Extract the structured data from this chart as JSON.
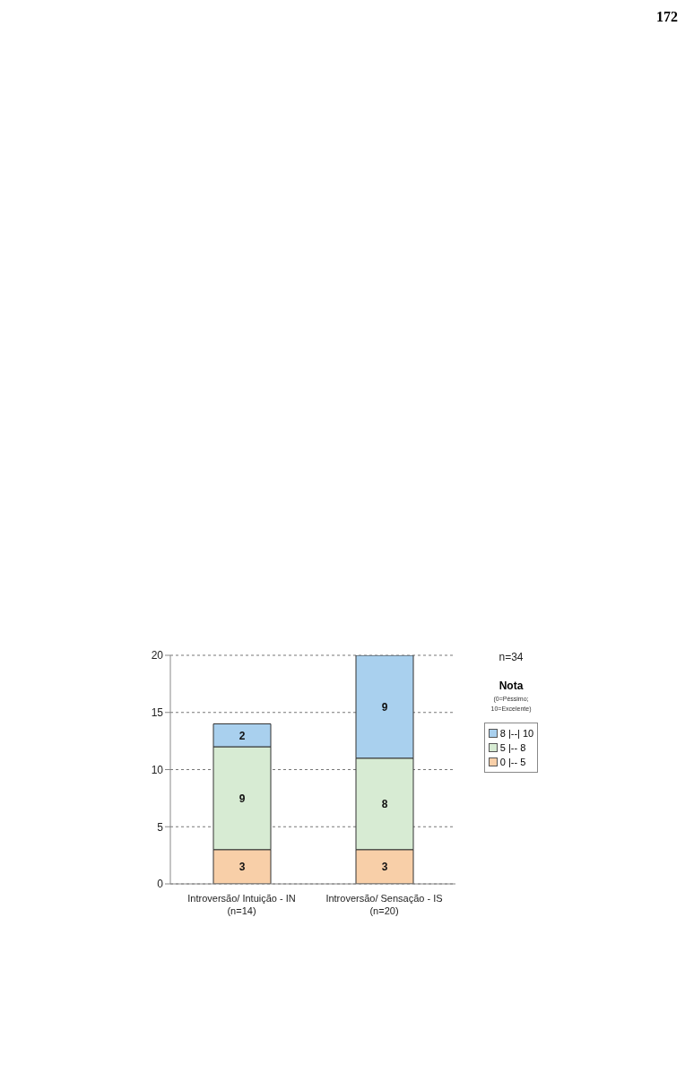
{
  "chart_data": {
    "type": "bar",
    "stacked": true,
    "categories": [
      "Introversão/ Intuição - IN\n(n=14)",
      "Introversão/ Sensação - IS\n(n=20)"
    ],
    "series": [
      {
        "name": "0 |-- 5",
        "color": "#f8cfa8",
        "values": [
          3,
          3
        ]
      },
      {
        "name": "5 |-- 8",
        "color": "#d7ebd3",
        "values": [
          9,
          8
        ]
      },
      {
        "name": "8 |--| 10",
        "color": "#a9d0ee",
        "values": [
          2,
          9
        ]
      }
    ],
    "ylim": [
      0,
      20
    ],
    "yticks": [
      0,
      5,
      10,
      15,
      20
    ],
    "grid": "y",
    "data_labels": true,
    "legend": "right",
    "legend_title": "Nota",
    "annotations": [
      "172",
      "n=34",
      "(0=Péssimo; 10=Excelente)"
    ]
  }
}
